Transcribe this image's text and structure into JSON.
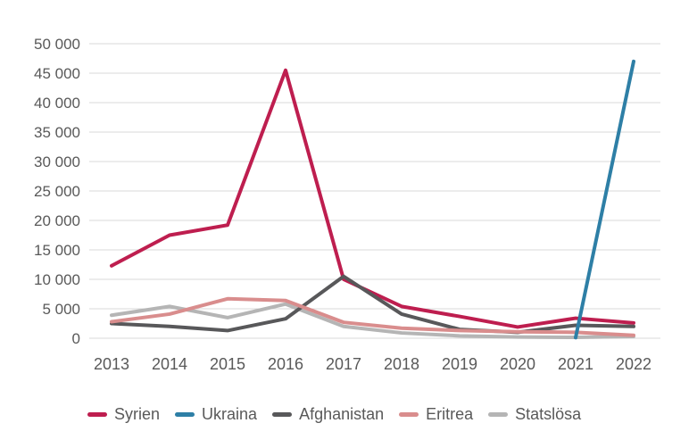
{
  "chart_data": {
    "type": "line",
    "title": "",
    "xlabel": "",
    "ylabel": "",
    "x": [
      "2013",
      "2014",
      "2015",
      "2016",
      "2017",
      "2018",
      "2019",
      "2020",
      "2021",
      "2022"
    ],
    "series": [
      {
        "name": "Syrien",
        "color": "#BE1E4F",
        "values": [
          12300,
          17500,
          19200,
          45500,
          10000,
          5400,
          3700,
          1900,
          3400,
          2600
        ]
      },
      {
        "name": "Ukraina",
        "color": "#2E7FA6",
        "values": [
          null,
          null,
          null,
          null,
          null,
          null,
          null,
          null,
          100,
          47000
        ]
      },
      {
        "name": "Afghanistan",
        "color": "#58585A",
        "values": [
          2500,
          2000,
          1300,
          3300,
          10500,
          4100,
          1500,
          1000,
          2200,
          2000
        ]
      },
      {
        "name": "Eritrea",
        "color": "#D98D8D",
        "values": [
          2800,
          4100,
          6700,
          6400,
          2700,
          1700,
          1300,
          1100,
          1000,
          500
        ]
      },
      {
        "name": "Statslösa",
        "color": "#B5B5B5",
        "values": [
          3900,
          5400,
          3500,
          5800,
          2000,
          900,
          400,
          200,
          150,
          300
        ]
      }
    ],
    "y_axis": {
      "min": 0,
      "max": 50000,
      "tick_step": 5000,
      "tick_labels": [
        "0",
        "5 000",
        "10 000",
        "15 000",
        "20 000",
        "25 000",
        "30 000",
        "35 000",
        "40 000",
        "45 000",
        "50 000"
      ]
    },
    "grid": "horizontal",
    "gridline_color": "#D9D9D9",
    "text_color": "#595959",
    "legend_position": "bottom"
  }
}
